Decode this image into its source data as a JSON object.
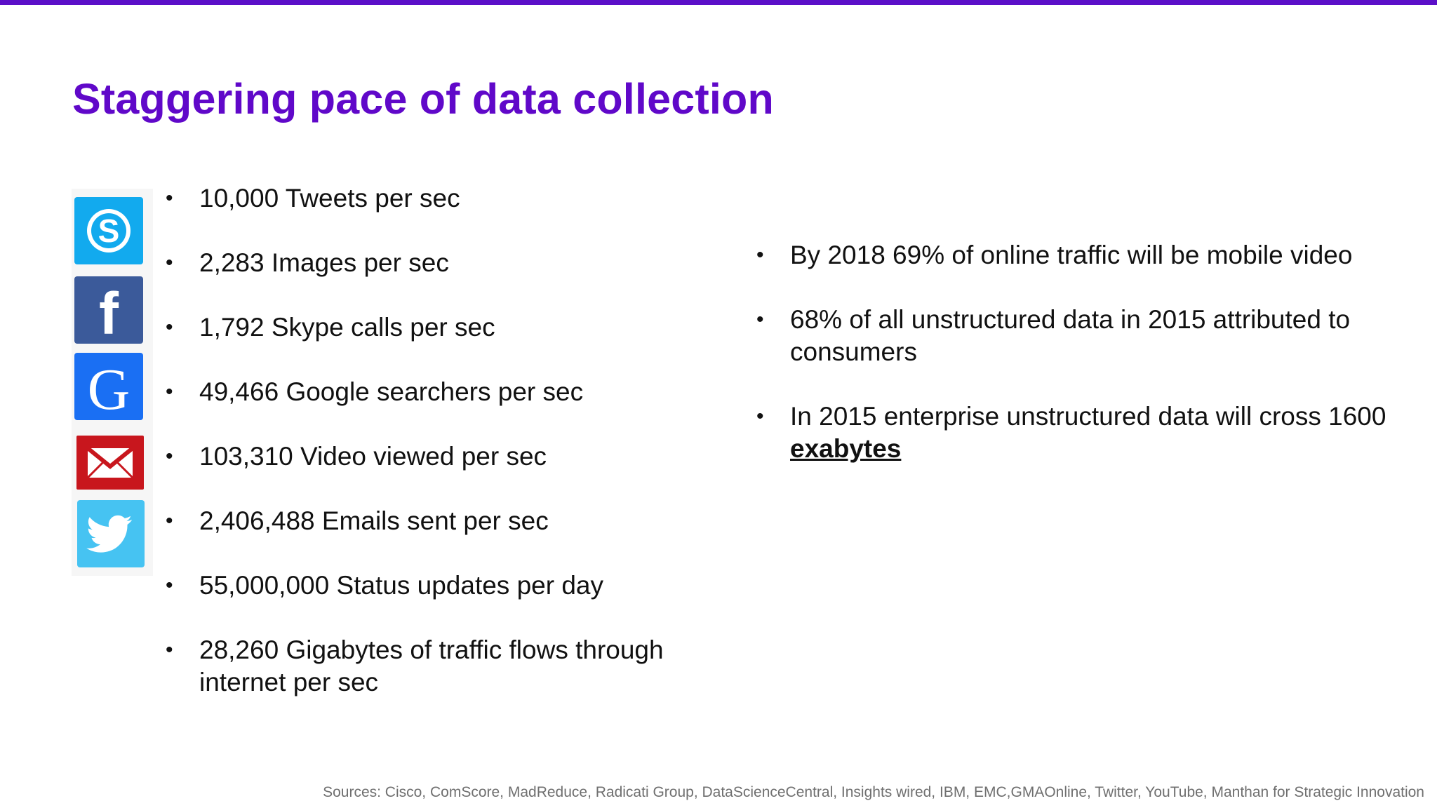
{
  "title": "Staggering pace of data collection",
  "colors": {
    "accent": "#6008c9",
    "top_bar": "#5b0fc8",
    "skype": "#12aaee",
    "facebook": "#3b5a9a",
    "google": "#1a6ff3",
    "gmail": "#c8161d",
    "twitter": "#46c3f2"
  },
  "icons": [
    "skype-icon",
    "facebook-icon",
    "google-icon",
    "gmail-icon",
    "twitter-icon"
  ],
  "left_bullets": [
    "10,000 Tweets per sec",
    "2,283 Images per sec",
    "1,792 Skype calls per sec",
    "49,466 Google searchers per sec",
    "103,310 Video viewed per sec",
    "2,406,488 Emails sent per sec",
    "55,000,000 Status updates per day",
    "28,260 Gigabytes of traffic flows through internet per sec"
  ],
  "right_bullets": [
    "By 2018 69% of online traffic will be mobile video",
    "68% of all unstructured data in 2015 attributed to consumers"
  ],
  "right_bullet_3": {
    "text": "In 2015 enterprise unstructured data will cross 1600 ",
    "link": "exabytes"
  },
  "sources": "Sources: Cisco, ComScore, MadReduce, Radicati Group, DataScienceCentral, Insights wired, IBM, EMC,GMAOnline, Twitter, YouTube, Manthan for Strategic Innovation"
}
